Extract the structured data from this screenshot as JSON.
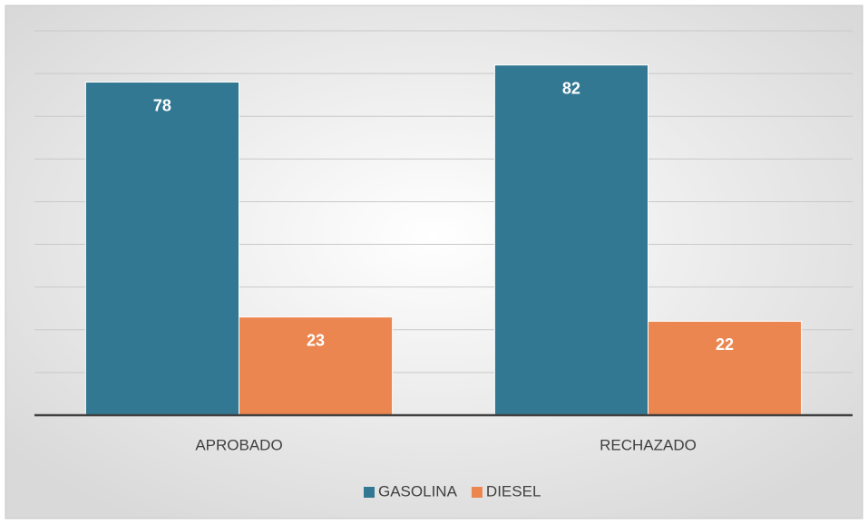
{
  "chart_data": {
    "type": "bar",
    "categories": [
      "APROBADO",
      "RECHAZADO"
    ],
    "series": [
      {
        "name": "GASOLINA",
        "color": "#337893",
        "values": [
          78,
          82
        ]
      },
      {
        "name": "DIESEL",
        "color": "#eb8650",
        "values": [
          23,
          22
        ]
      }
    ],
    "ylim": [
      0,
      90
    ],
    "yticks": [
      0,
      10,
      20,
      30,
      40,
      50,
      60,
      70,
      80,
      90
    ],
    "grid": true,
    "legend": "bottom"
  }
}
